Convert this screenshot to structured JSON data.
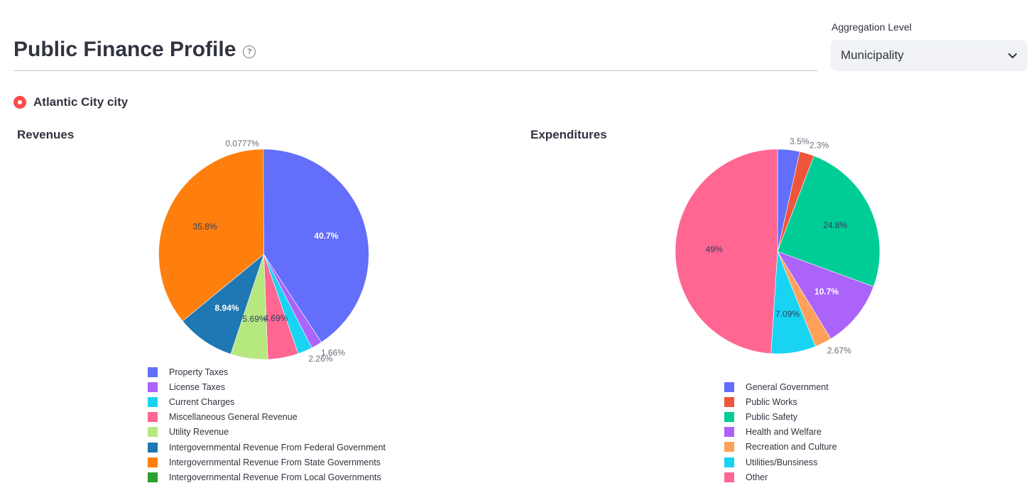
{
  "header": {
    "title": "Public Finance Profile",
    "help_icon": "question-circle-icon"
  },
  "aggregation": {
    "label": "Aggregation Level",
    "selected": "Municipality"
  },
  "location": {
    "label": "Atlantic City city"
  },
  "chart_data": [
    {
      "type": "pie",
      "title": "Revenues",
      "labels": [
        "Property Taxes",
        "License Taxes",
        "Current Charges",
        "Miscellaneous General Revenue",
        "Utility Revenue",
        "Intergovernmental Revenue From Federal Government",
        "Intergovernmental Revenue From State Governments",
        "Intergovernmental Revenue From Local Governments"
      ],
      "values": [
        40.7,
        1.66,
        2.26,
        4.69,
        5.69,
        8.94,
        35.8,
        0.0777
      ],
      "text_labels": [
        "40.7%",
        "1.66%",
        "2.26%",
        "4.69%",
        "5.69%",
        "8.94%",
        "35.8%",
        "0.0777%"
      ],
      "colors": [
        "#636efa",
        "#ab63fa",
        "#19d3f3",
        "#ff6692",
        "#b6e880",
        "#1f77b4",
        "#ff7f0e",
        "#2ca02c"
      ],
      "legend_position": "bottom"
    },
    {
      "type": "pie",
      "title": "Expenditures",
      "labels": [
        "General Government",
        "Public Works",
        "Public Safety",
        "Health and Welfare",
        "Recreation and Culture",
        "Utilities/Bunsiness",
        "Other"
      ],
      "values": [
        3.5,
        2.3,
        24.8,
        10.7,
        2.67,
        7.09,
        49
      ],
      "text_labels": [
        "3.5%",
        "2.3%",
        "24.8%",
        "10.7%",
        "2.67%",
        "7.09%",
        "49%"
      ],
      "colors": [
        "#636efa",
        "#ef553b",
        "#00cc96",
        "#ab63fa",
        "#ffa15a",
        "#19d3f3",
        "#ff6692"
      ],
      "legend_position": "bottom"
    }
  ]
}
